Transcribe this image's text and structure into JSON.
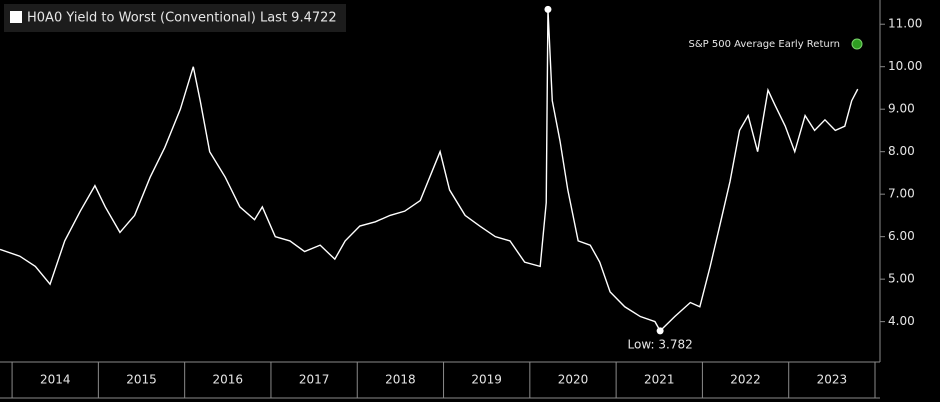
{
  "chart_data": {
    "type": "line",
    "series": [
      {
        "name": "H0A0 Yield to Worst (Conventional) Last 9.4722",
        "color": "#ffffff",
        "values": [
          5.7,
          5.54,
          5.3,
          4.88,
          5.9,
          6.6,
          7.2,
          6.7,
          6.1,
          6.5,
          7.4,
          8.1,
          9.0,
          10.0,
          9.2,
          8.0,
          7.4,
          6.7,
          6.4,
          6.7,
          6.0,
          5.9,
          5.65,
          5.8,
          5.47,
          5.9,
          6.25,
          6.35,
          6.5,
          6.6,
          6.85,
          8.0,
          7.1,
          6.5,
          6.25,
          6.0,
          5.9,
          5.4,
          5.3,
          6.8,
          11.35,
          9.2,
          8.25,
          7.1,
          5.9,
          5.8,
          5.4,
          4.7,
          4.35,
          4.12,
          4.0,
          3.782,
          4.12,
          4.45,
          4.35,
          5.3,
          6.25,
          7.3,
          8.5,
          8.85,
          8.0,
          9.45,
          9.1,
          8.6,
          8.0,
          8.85,
          8.5,
          8.75,
          8.5,
          8.6,
          9.2,
          9.4722
        ]
      }
    ],
    "x": [
      2013.86,
      2014.09,
      2014.27,
      2014.44,
      2014.61,
      2014.79,
      2014.96,
      2015.08,
      2015.25,
      2015.42,
      2015.6,
      2015.77,
      2015.95,
      2016.1,
      2016.18,
      2016.29,
      2016.47,
      2016.64,
      2016.81,
      2016.9,
      2017.05,
      2017.22,
      2017.39,
      2017.57,
      2017.74,
      2017.86,
      2018.03,
      2018.21,
      2018.38,
      2018.55,
      2018.73,
      2018.96,
      2019.07,
      2019.25,
      2019.42,
      2019.6,
      2019.77,
      2019.94,
      2020.12,
      2020.19,
      2020.21,
      2020.26,
      2020.35,
      2020.44,
      2020.56,
      2020.7,
      2020.81,
      2020.93,
      2021.1,
      2021.28,
      2021.45,
      2021.51,
      2021.68,
      2021.86,
      2021.97,
      2022.09,
      2022.2,
      2022.32,
      2022.43,
      2022.53,
      2022.64,
      2022.76,
      2022.84,
      2022.96,
      2023.07,
      2023.19,
      2023.3,
      2023.42,
      2023.54,
      2023.65,
      2023.73,
      2023.8
    ],
    "xlim": [
      2013.86,
      2024.0
    ],
    "xticks": [
      {
        "value": 2014.5,
        "label": "2014"
      },
      {
        "value": 2015.5,
        "label": "2015"
      },
      {
        "value": 2016.5,
        "label": "2016"
      },
      {
        "value": 2017.5,
        "label": "2017"
      },
      {
        "value": 2018.5,
        "label": "2018"
      },
      {
        "value": 2019.5,
        "label": "2019"
      },
      {
        "value": 2020.5,
        "label": "2020"
      },
      {
        "value": 2021.5,
        "label": "2021"
      },
      {
        "value": 2022.5,
        "label": "2022"
      },
      {
        "value": 2023.5,
        "label": "2023"
      }
    ],
    "ylim": [
      3.05,
      11.57
    ],
    "yticks": [
      {
        "value": 4,
        "label": "4.00"
      },
      {
        "value": 5,
        "label": "5.00"
      },
      {
        "value": 6,
        "label": "6.00"
      },
      {
        "value": 7,
        "label": "7.00"
      },
      {
        "value": 8,
        "label": "8.00"
      },
      {
        "value": 9,
        "label": "9.00"
      },
      {
        "value": 10,
        "label": "10.00"
      },
      {
        "value": 11,
        "label": "11.00"
      }
    ],
    "annotation": "Low: 3.782",
    "legend": [
      {
        "name": "S&P 500 Average Early Return",
        "color": "#2f9e22"
      }
    ]
  }
}
